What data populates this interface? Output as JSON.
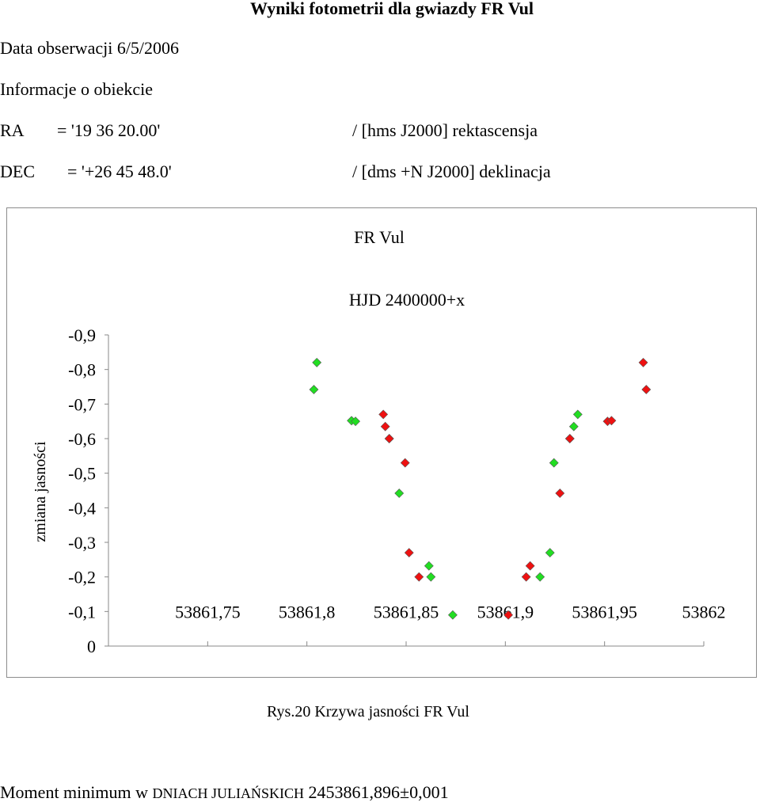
{
  "header": {
    "title": "Wyniki fotometrii dla gwiazdy FR Vul",
    "observation_date": "Data obserwacji 6/5/2006",
    "object_info": "Informacje o obiekcie",
    "ra_label": "RA",
    "ra_value": "= '19 36 20.00'",
    "ra_comment": "/ [hms J2000] rektascensja",
    "dec_label": "DEC",
    "dec_value": "= '+26 45 48.0'",
    "dec_comment": "/ [dms +N J2000] deklinacja"
  },
  "caption": "Rys.20 Krzywa jasności FR Vul",
  "result": {
    "prefix": "Moment minimum  w ",
    "unit": "DNIACH JULIAŃSKICH",
    "value": " 2453861,896±0,001"
  },
  "chart_data": {
    "type": "scatter",
    "title": "FR Vul",
    "xlabel": "HJD 2400000+x",
    "ylabel": "zmiana jasności",
    "xlim": [
      53861.7,
      53862
    ],
    "ylim": [
      0,
      -0.9
    ],
    "x_ticks": [
      "53861,75",
      "53861,8",
      "53861,85",
      "53861,9",
      "53861,95",
      "53862"
    ],
    "x_tick_values": [
      53861.75,
      53861.8,
      53861.85,
      53861.9,
      53861.95,
      53862
    ],
    "y_ticks": [
      "0",
      "-0,1",
      "-0,2",
      "-0,3",
      "-0,4",
      "-0,5",
      "-0,6",
      "-0,7",
      "-0,8",
      "-0,9"
    ],
    "y_tick_values": [
      0,
      -0.1,
      -0.2,
      -0.3,
      -0.4,
      -0.5,
      -0.6,
      -0.7,
      -0.8,
      -0.9
    ],
    "grid": false,
    "legend": "none",
    "series": [
      {
        "color": "#22dd22",
        "marker": "diamond",
        "points": [
          {
            "x": 53861.8035,
            "y": -0.742
          },
          {
            "x": 53861.805,
            "y": -0.82
          },
          {
            "x": 53861.8225,
            "y": -0.652
          },
          {
            "x": 53861.8245,
            "y": -0.65
          },
          {
            "x": 53861.8415,
            "y": -0.6
          },
          {
            "x": 53861.8465,
            "y": -0.442
          },
          {
            "x": 53861.8615,
            "y": -0.232
          },
          {
            "x": 53861.8625,
            "y": -0.2
          },
          {
            "x": 53861.8735,
            "y": -0.09
          },
          {
            "x": 53861.9175,
            "y": -0.2
          },
          {
            "x": 53861.9225,
            "y": -0.27
          },
          {
            "x": 53861.9245,
            "y": -0.53
          },
          {
            "x": 53861.9325,
            "y": -0.6
          },
          {
            "x": 53861.9345,
            "y": -0.635
          },
          {
            "x": 53861.9365,
            "y": -0.67
          }
        ]
      },
      {
        "color": "#ee1111",
        "marker": "diamond",
        "points": [
          {
            "x": 53861.8385,
            "y": -0.67
          },
          {
            "x": 53861.8395,
            "y": -0.635
          },
          {
            "x": 53861.8415,
            "y": -0.6
          },
          {
            "x": 53861.8495,
            "y": -0.53
          },
          {
            "x": 53861.8515,
            "y": -0.27
          },
          {
            "x": 53861.8565,
            "y": -0.2
          },
          {
            "x": 53861.9015,
            "y": -0.09
          },
          {
            "x": 53861.9105,
            "y": -0.2
          },
          {
            "x": 53861.9125,
            "y": -0.232
          },
          {
            "x": 53861.9275,
            "y": -0.442
          },
          {
            "x": 53861.9325,
            "y": -0.6
          },
          {
            "x": 53861.9515,
            "y": -0.65
          },
          {
            "x": 53861.9535,
            "y": -0.652
          },
          {
            "x": 53861.9695,
            "y": -0.82
          },
          {
            "x": 53861.971,
            "y": -0.742
          }
        ]
      }
    ]
  }
}
